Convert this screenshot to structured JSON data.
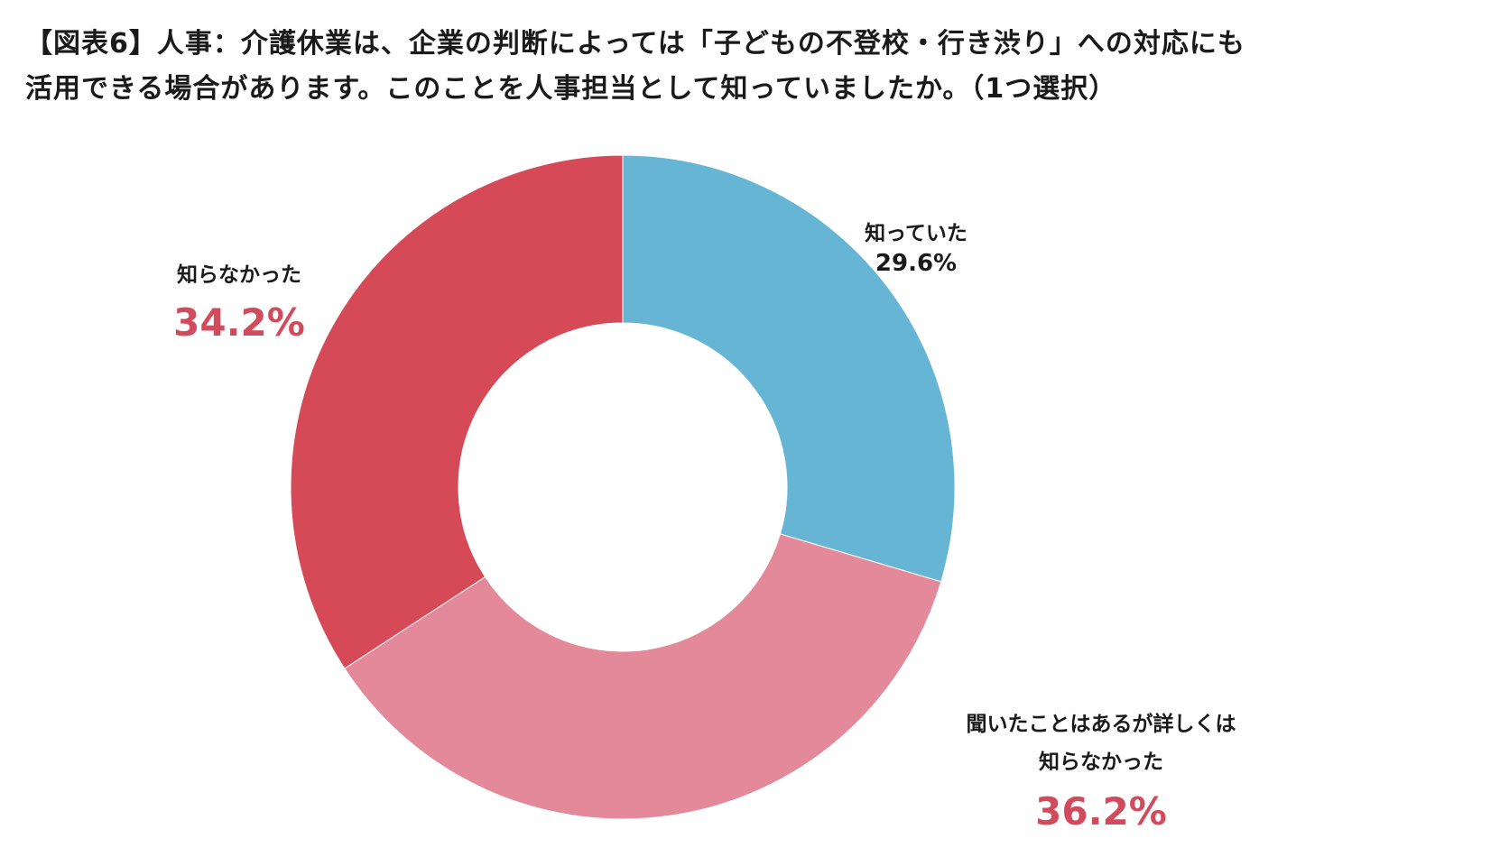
{
  "title": {
    "line1": "【図表6】人事：介護休業は、企業の判断によっては「子どもの不登校・行き渋り」への対応にも",
    "line2": "活用できる場合があります。このことを人事担当として知っていましたか。（1つ選択）"
  },
  "chart_data": {
    "type": "pie",
    "donut": true,
    "title": "【図表6】人事：介護休業は、企業の判断によっては「子どもの不登校・行き渋り」への対応にも活用できる場合があります。このことを人事担当として知っていましたか。（1つ選択）",
    "slices": [
      {
        "label_lines": [
          "知っていた"
        ],
        "value": 29.6,
        "value_text": "29.6%",
        "color": "#67B5D4",
        "label_color": "#1a1a1a"
      },
      {
        "label_lines": [
          "聞いたことはあるが詳しくは",
          "知らなかった"
        ],
        "value": 36.2,
        "value_text": "36.2%",
        "color": "#E3899A",
        "label_color": "#D24B5C"
      },
      {
        "label_lines": [
          "知らなかった"
        ],
        "value": 34.2,
        "value_text": "34.2%",
        "color": "#D64A57",
        "label_color": "#D24B5C"
      }
    ],
    "start_angle": "12 o'clock",
    "direction": "clockwise",
    "legend": "none"
  }
}
